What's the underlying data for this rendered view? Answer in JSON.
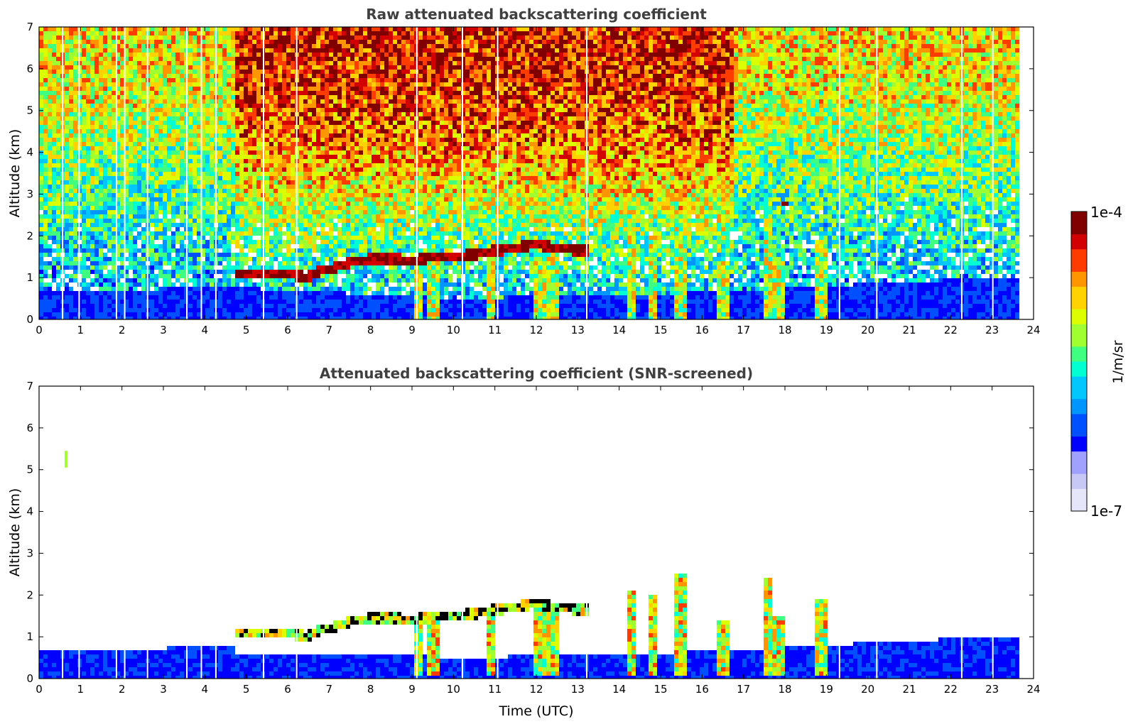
{
  "colors": {
    "colormap": [
      "#e6e6fa",
      "#c8c8f5",
      "#a0a0ff",
      "#0000ff",
      "#0050ff",
      "#0096ff",
      "#00c8ff",
      "#00ffd2",
      "#40ff80",
      "#a0ff30",
      "#dcff00",
      "#ffd200",
      "#ff9600",
      "#ff3c00",
      "#d20000",
      "#800000"
    ],
    "axis": "#000000",
    "title": "#404040"
  },
  "chart_data": [
    {
      "type": "heatmap",
      "title": "Raw attenuated backscattering coefficient",
      "xlabel": "",
      "ylabel": "Altitude (km)",
      "xlim": [
        0,
        24
      ],
      "ylim": [
        0,
        7
      ],
      "xticks": [
        "0",
        "1",
        "2",
        "3",
        "4",
        "5",
        "6",
        "7",
        "8",
        "9",
        "10",
        "11",
        "12",
        "13",
        "14",
        "15",
        "16",
        "17",
        "18",
        "19",
        "20",
        "21",
        "22",
        "23",
        "24"
      ],
      "yticks": [
        "0",
        "1",
        "2",
        "3",
        "4",
        "5",
        "6",
        "7"
      ],
      "data_end_time": 23.75,
      "color_scale": "log",
      "cloud_base_track": {
        "time": [
          4.7,
          5.5,
          6.0,
          6.4,
          6.8,
          7.5,
          8.0,
          8.5,
          9.0,
          9.5,
          10.0,
          10.5,
          11.0,
          11.5,
          12.0,
          12.5,
          13.0,
          13.3
        ],
        "altitude": [
          1.1,
          1.12,
          1.1,
          1.0,
          1.15,
          1.35,
          1.45,
          1.45,
          1.4,
          1.5,
          1.5,
          1.55,
          1.65,
          1.7,
          1.8,
          1.7,
          1.65,
          1.65
        ]
      },
      "precip_shafts": [
        {
          "time": 9.15,
          "top": 1.5
        },
        {
          "time": 9.5,
          "top": 1.5
        },
        {
          "time": 10.9,
          "top": 1.6
        },
        {
          "time": 12.1,
          "top": 1.8
        },
        {
          "time": 12.4,
          "top": 1.8
        },
        {
          "time": 14.3,
          "top": 2.1
        },
        {
          "time": 14.8,
          "top": 2.0
        },
        {
          "time": 15.5,
          "top": 2.5
        },
        {
          "time": 16.5,
          "top": 1.4
        },
        {
          "time": 17.6,
          "top": 2.4
        },
        {
          "time": 17.85,
          "top": 1.5
        },
        {
          "time": 18.85,
          "top": 1.9
        }
      ],
      "boundary_layer_top": {
        "time": [
          0,
          5,
          10,
          15,
          19,
          24
        ],
        "altitude": [
          0.7,
          0.75,
          0.5,
          0.6,
          0.8,
          1.05
        ]
      },
      "elevated_feature": {
        "time": 18.0,
        "altitude": 2.75
      }
    },
    {
      "type": "heatmap",
      "title": "Attenuated backscattering coefficient (SNR-screened)",
      "xlabel": "Time (UTC)",
      "ylabel": "Altitude (km)",
      "xlim": [
        0,
        24
      ],
      "ylim": [
        0,
        7
      ],
      "xticks": [
        "0",
        "1",
        "2",
        "3",
        "4",
        "5",
        "6",
        "7",
        "8",
        "9",
        "10",
        "11",
        "12",
        "13",
        "14",
        "15",
        "16",
        "17",
        "18",
        "19",
        "20",
        "21",
        "22",
        "23",
        "24"
      ],
      "yticks": [
        "0",
        "1",
        "2",
        "3",
        "4",
        "5",
        "6",
        "7"
      ],
      "data_end_time": 23.75,
      "color_scale": "log",
      "isolated_feature": {
        "time": 0.65,
        "altitude": 5.25
      }
    }
  ],
  "colorbar": {
    "label": "1/m/sr",
    "max_label": "1e-4",
    "min_label": "1e-7"
  }
}
